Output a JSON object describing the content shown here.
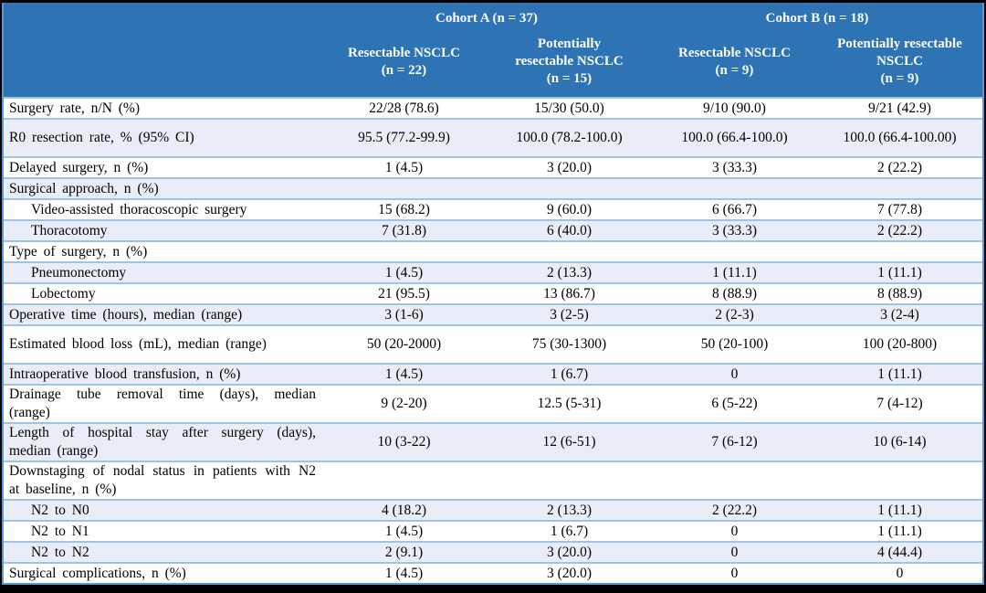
{
  "colors": {
    "header_bg": "#2E74B5",
    "header_text": "#FFFFFF",
    "stripe_bg": "#E8EDF7",
    "row_border": "#9DC3E6",
    "outer_border": "#5B9BD5",
    "frame_bg": "#000000",
    "body_text": "#000000"
  },
  "table": {
    "header": {
      "groups": [
        {
          "label": "Cohort A (n = 37)"
        },
        {
          "label": "Cohort B (n = 18)"
        }
      ],
      "columns": [
        {
          "label": "Resectable NSCLC\n(n = 22)"
        },
        {
          "label": "Potentially\nresectable NSCLC\n(n = 15)"
        },
        {
          "label": "Resectable NSCLC\n(n = 9)"
        },
        {
          "label": "Potentially resectable\nNSCLC\n(n = 9)"
        }
      ]
    },
    "rows": [
      {
        "label": "Surgery rate, n/N (%)",
        "values": [
          "22/28 (78.6)",
          "15/30 (50.0)",
          "9/10 (90.0)",
          "9/21 (42.9)"
        ]
      },
      {
        "label": "R0 resection rate, % (95% CI)",
        "values": [
          "95.5 (77.2-99.9)",
          "100.0 (78.2-100.0)",
          "100.0 (66.4-100.0)",
          "100.0 (66.4-100.00)"
        ]
      },
      {
        "label": "Delayed surgery, n (%)",
        "values": [
          "1 (4.5)",
          "3 (20.0)",
          "3 (33.3)",
          "2 (22.2)"
        ]
      },
      {
        "label": "Surgical approach, n (%)",
        "values": [
          "",
          "",
          "",
          ""
        ]
      },
      {
        "label": "Video-assisted thoracoscopic surgery",
        "values": [
          "15 (68.2)",
          "9 (60.0)",
          "6 (66.7)",
          "7 (77.8)"
        ]
      },
      {
        "label": "Thoracotomy",
        "values": [
          "7 (31.8)",
          "6 (40.0)",
          "3 (33.3)",
          "2 (22.2)"
        ]
      },
      {
        "label": "Type of surgery, n (%)",
        "values": [
          "",
          "",
          "",
          ""
        ]
      },
      {
        "label": "Pneumonectomy",
        "values": [
          "1 (4.5)",
          "2 (13.3)",
          "1 (11.1)",
          "1 (11.1)"
        ]
      },
      {
        "label": "Lobectomy",
        "values": [
          "21 (95.5)",
          "13 (86.7)",
          "8 (88.9)",
          "8 (88.9)"
        ]
      },
      {
        "label": "Operative time (hours), median (range)",
        "values": [
          "3 (1-6)",
          "3 (2-5)",
          "2 (2-3)",
          "3 (2-4)"
        ]
      },
      {
        "label": "Estimated blood loss (mL), median (range)",
        "values": [
          "50 (20-2000)",
          "75 (30-1300)",
          "50 (20-100)",
          "100 (20-800)"
        ]
      },
      {
        "label": "Intraoperative blood transfusion, n (%)",
        "values": [
          "1 (4.5)",
          "1 (6.7)",
          "0",
          "1 (11.1)"
        ]
      },
      {
        "label": "Drainage tube removal time (days), median (range)",
        "values": [
          "9 (2-20)",
          "12.5 (5-31)",
          "6 (5-22)",
          "7 (4-12)"
        ]
      },
      {
        "label": "Length of hospital stay after surgery (days), median (range)",
        "values": [
          "10 (3-22)",
          "12 (6-51)",
          "7 (6-12)",
          "10 (6-14)"
        ]
      },
      {
        "label": "Downstaging of nodal status in patients with N2 at baseline, n (%)",
        "values": [
          "",
          "",
          "",
          ""
        ]
      },
      {
        "label": "N2 to N0",
        "values": [
          "4 (18.2)",
          "2 (13.3)",
          "2 (22.2)",
          "1 (11.1)"
        ]
      },
      {
        "label": "N2 to N1",
        "values": [
          "1 (4.5)",
          "1 (6.7)",
          "0",
          "1 (11.1)"
        ]
      },
      {
        "label": "N2 to N2",
        "values": [
          "2 (9.1)",
          "3 (20.0)",
          "0",
          "4 (44.4)"
        ]
      },
      {
        "label": "Surgical complications, n (%)",
        "values": [
          "1 (4.5)",
          "3 (20.0)",
          "0",
          "0"
        ]
      }
    ]
  }
}
